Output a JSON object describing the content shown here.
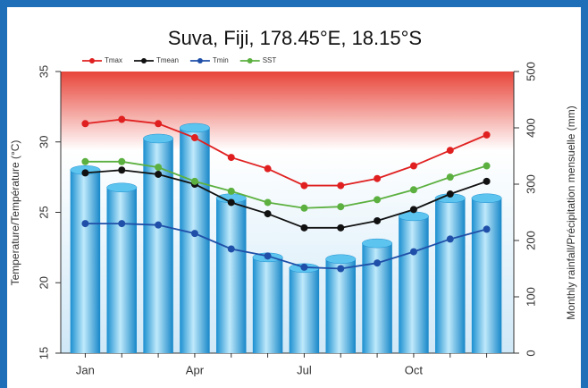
{
  "chart_data": {
    "type": "bar",
    "title": "Suva, Fiji, 178.45°E, 18.15°S",
    "ylabel": "Temperature/Température (°C)",
    "y2label": "Monthly rainfall/Précipitation mensuelle (mm)",
    "categories": [
      "Jan",
      null,
      null,
      "Apr",
      null,
      null,
      "Jul",
      null,
      null,
      "Oct",
      null,
      null
    ],
    "ylim": [
      15,
      35
    ],
    "yticks": [
      15,
      20,
      25,
      30,
      35
    ],
    "y2lim": [
      0,
      500
    ],
    "y2ticks": [
      0,
      100,
      200,
      300,
      400,
      500
    ],
    "legend": "top",
    "series": [
      {
        "type": "bar",
        "axis": "y2",
        "color": "#29a8e0",
        "values": [
          325,
          294,
          381,
          400,
          275,
          170,
          151,
          167,
          195,
          243,
          275,
          275
        ]
      },
      {
        "name": "Tmax",
        "type": "line",
        "color": "#e02020",
        "values": [
          31.3,
          31.6,
          31.3,
          30.3,
          28.9,
          28.1,
          26.9,
          26.9,
          27.4,
          28.3,
          29.4,
          30.5
        ]
      },
      {
        "name": "Tmean",
        "type": "line",
        "color": "#111111",
        "values": [
          27.8,
          28.0,
          27.7,
          27.0,
          25.7,
          24.9,
          23.9,
          23.9,
          24.4,
          25.2,
          26.3,
          27.2
        ]
      },
      {
        "name": "Tmin",
        "type": "line",
        "color": "#1f4fa8",
        "values": [
          24.2,
          24.2,
          24.1,
          23.5,
          22.4,
          21.9,
          21.1,
          21.0,
          21.4,
          22.2,
          23.1,
          23.8
        ]
      },
      {
        "name": "SST",
        "type": "line",
        "color": "#5cb040",
        "values": [
          28.6,
          28.6,
          28.2,
          27.2,
          26.5,
          25.7,
          25.3,
          25.4,
          25.9,
          26.6,
          27.5,
          28.3
        ]
      }
    ]
  }
}
